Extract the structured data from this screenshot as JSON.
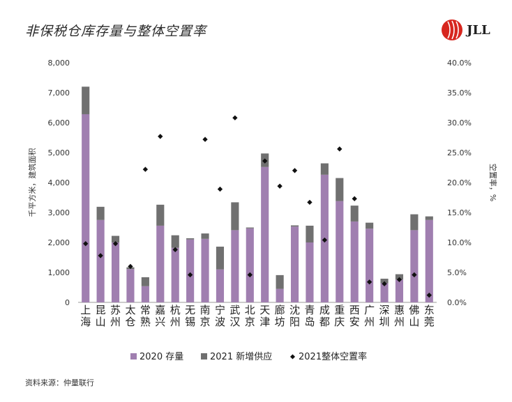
{
  "title": "非保税仓库存量与整体空置率",
  "logo_text": "JLL",
  "logo_color": "#d7261e",
  "source": "资料来源：仲量联行",
  "colors": {
    "stock_2020": "#a07fb0",
    "supply_2021": "#707070",
    "vacancy": "#111111"
  },
  "chart_data": {
    "type": "bar",
    "stacked": true,
    "categories": [
      "上海",
      "昆山",
      "苏州",
      "太仓",
      "常熟",
      "嘉兴",
      "杭州",
      "无锡",
      "南京",
      "宁波",
      "武汉",
      "北京",
      "天津",
      "廊坊",
      "沈阳",
      "青岛",
      "成都",
      "重庆",
      "西安",
      "广州",
      "深圳",
      "惠州",
      "佛山",
      "东莞"
    ],
    "series": [
      {
        "name": "2020 存量",
        "axis": "left",
        "values": [
          6280,
          2750,
          2000,
          1110,
          540,
          2560,
          1820,
          2100,
          2120,
          1100,
          2410,
          2470,
          4520,
          450,
          2530,
          2000,
          4260,
          3380,
          2700,
          2460,
          640,
          760,
          2410,
          2750
        ]
      },
      {
        "name": "2021 新增供应",
        "axis": "left",
        "values": [
          920,
          440,
          220,
          60,
          300,
          700,
          420,
          40,
          180,
          760,
          930,
          30,
          450,
          460,
          40,
          560,
          380,
          770,
          530,
          200,
          150,
          180,
          530,
          120
        ]
      },
      {
        "name": "2021整体空置率",
        "axis": "right",
        "type": "scatter",
        "values": [
          9.8,
          7.8,
          9.8,
          6.0,
          22.2,
          27.7,
          8.8,
          4.6,
          27.2,
          18.9,
          30.8,
          4.6,
          23.6,
          19.4,
          22.0,
          16.7,
          10.4,
          25.6,
          17.3,
          3.4,
          3.1,
          3.8,
          4.6,
          1.2
        ]
      }
    ],
    "ylabel": "千平方米，建筑面积",
    "y2label": "空置率，%",
    "ylim": [
      0,
      8000
    ],
    "yticks": [
      "0",
      "1,000",
      "2,000",
      "3,000",
      "4,000",
      "5,000",
      "6,000",
      "7,000",
      "8,000"
    ],
    "y2lim": [
      0,
      40
    ],
    "y2ticks": [
      "0.0%",
      "5.0%",
      "10.0%",
      "15.0%",
      "20.0%",
      "25.0%",
      "30.0%",
      "35.0%",
      "40.0%"
    ],
    "grid": false,
    "legend_position": "bottom"
  }
}
